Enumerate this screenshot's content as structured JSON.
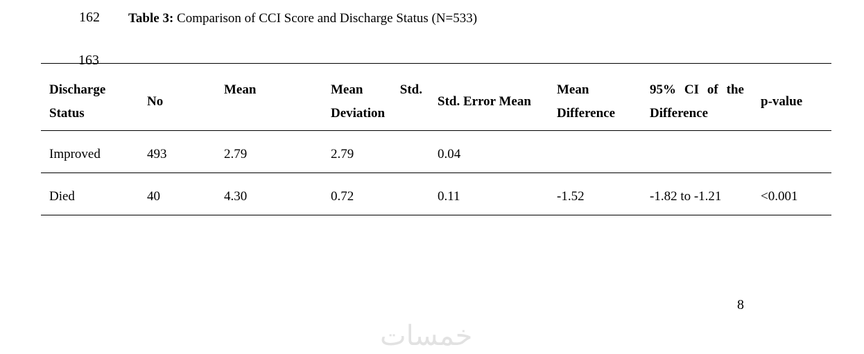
{
  "line_numbers": [
    "162",
    "163"
  ],
  "caption": {
    "label": "Table 3:",
    "text": "Comparison of CCI Score and Discharge Status (N=533)"
  },
  "table": {
    "headers": [
      "Discharge Status",
      "No",
      "Mean",
      "Mean Std. Deviation",
      "Std. Error Mean",
      "Mean Difference",
      "95% CI of the Difference",
      "p-value"
    ],
    "rows": [
      [
        "Improved",
        "493",
        "2.79",
        "2.79",
        "0.04"
      ],
      [
        "Died",
        "40",
        "4.30",
        "0.72",
        "0.11",
        "-1.52",
        "-1.82 to -1.21",
        "<0.001"
      ]
    ]
  },
  "page_number": "8",
  "watermark": "خمسات"
}
